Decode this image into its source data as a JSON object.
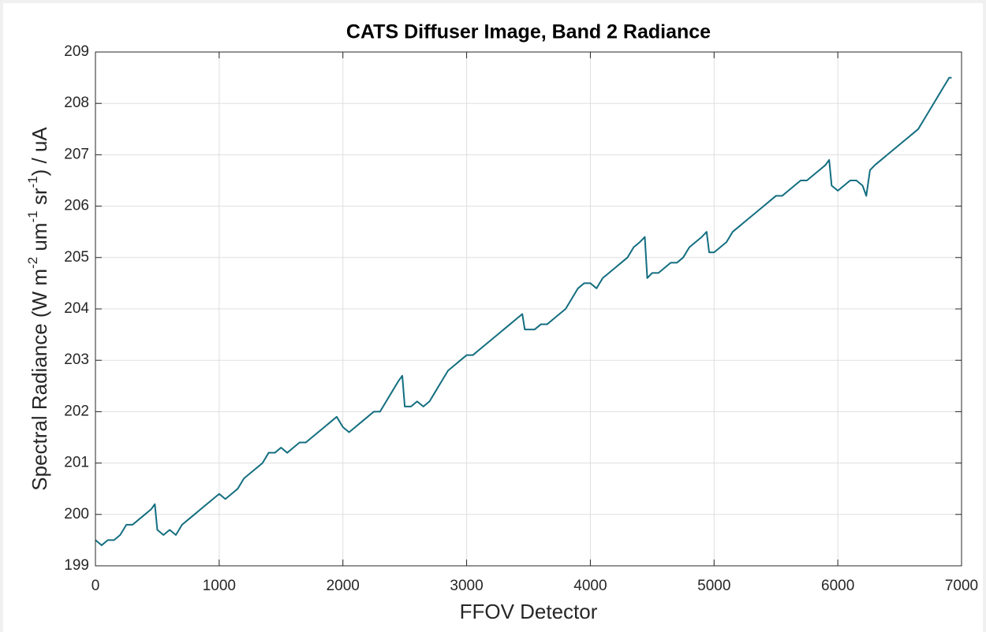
{
  "chart_data": {
    "type": "line",
    "title": "CATS Diffuser Image, Band 2 Radiance",
    "xlabel": "FFOV Detector",
    "ylabel": [
      "Spectral Radiance (W m",
      "-2",
      " um",
      "-1",
      " sr",
      "-1",
      ") / uA"
    ],
    "x": [
      0,
      50,
      100,
      150,
      200,
      250,
      300,
      350,
      400,
      450,
      480,
      500,
      550,
      600,
      650,
      700,
      750,
      800,
      850,
      900,
      950,
      1000,
      1050,
      1100,
      1150,
      1200,
      1250,
      1300,
      1350,
      1400,
      1450,
      1500,
      1550,
      1600,
      1650,
      1700,
      1750,
      1800,
      1850,
      1900,
      1950,
      2000,
      2050,
      2100,
      2150,
      2200,
      2250,
      2300,
      2350,
      2400,
      2450,
      2480,
      2500,
      2550,
      2600,
      2650,
      2700,
      2750,
      2800,
      2850,
      2900,
      2950,
      3000,
      3050,
      3100,
      3150,
      3200,
      3250,
      3300,
      3350,
      3400,
      3450,
      3470,
      3500,
      3550,
      3600,
      3650,
      3700,
      3750,
      3800,
      3850,
      3900,
      3950,
      4000,
      4050,
      4100,
      4150,
      4200,
      4250,
      4300,
      4350,
      4400,
      4440,
      4460,
      4500,
      4550,
      4600,
      4650,
      4700,
      4750,
      4800,
      4850,
      4900,
      4940,
      4960,
      5000,
      5050,
      5100,
      5150,
      5200,
      5250,
      5300,
      5350,
      5400,
      5450,
      5500,
      5550,
      5600,
      5650,
      5700,
      5750,
      5800,
      5850,
      5900,
      5930,
      5950,
      6000,
      6050,
      6100,
      6150,
      6200,
      6230,
      6260,
      6300,
      6350,
      6400,
      6450,
      6500,
      6550,
      6600,
      6650,
      6700,
      6750,
      6800,
      6850,
      6900,
      6920
    ],
    "series": [
      {
        "name": "Band 2",
        "color": "#136e80",
        "values": [
          199.5,
          199.4,
          199.5,
          199.5,
          199.6,
          199.8,
          199.8,
          199.9,
          200.0,
          200.1,
          200.2,
          199.7,
          199.6,
          199.7,
          199.6,
          199.8,
          199.9,
          200.0,
          200.1,
          200.2,
          200.3,
          200.4,
          200.3,
          200.4,
          200.5,
          200.7,
          200.8,
          200.9,
          201.0,
          201.2,
          201.2,
          201.3,
          201.2,
          201.3,
          201.4,
          201.4,
          201.5,
          201.6,
          201.7,
          201.8,
          201.9,
          201.7,
          201.6,
          201.7,
          201.8,
          201.9,
          202.0,
          202.0,
          202.2,
          202.4,
          202.6,
          202.7,
          202.1,
          202.1,
          202.2,
          202.1,
          202.2,
          202.4,
          202.6,
          202.8,
          202.9,
          203.0,
          203.1,
          203.1,
          203.2,
          203.3,
          203.4,
          203.5,
          203.6,
          203.7,
          203.8,
          203.9,
          203.6,
          203.6,
          203.6,
          203.7,
          203.7,
          203.8,
          203.9,
          204.0,
          204.2,
          204.4,
          204.5,
          204.5,
          204.4,
          204.6,
          204.7,
          204.8,
          204.9,
          205.0,
          205.2,
          205.3,
          205.4,
          204.6,
          204.7,
          204.7,
          204.8,
          204.9,
          204.9,
          205.0,
          205.2,
          205.3,
          205.4,
          205.5,
          205.1,
          205.1,
          205.2,
          205.3,
          205.5,
          205.6,
          205.7,
          205.8,
          205.9,
          206.0,
          206.1,
          206.2,
          206.2,
          206.3,
          206.4,
          206.5,
          206.5,
          206.6,
          206.7,
          206.8,
          206.9,
          206.4,
          206.3,
          206.4,
          206.5,
          206.5,
          206.4,
          206.2,
          206.7,
          206.8,
          206.9,
          207.0,
          207.1,
          207.2,
          207.3,
          207.4,
          207.5,
          207.7,
          207.9,
          208.1,
          208.3,
          208.5,
          208.5
        ]
      }
    ],
    "xlim": [
      0,
      7000
    ],
    "xticks": [
      0,
      1000,
      2000,
      3000,
      4000,
      5000,
      6000,
      7000
    ],
    "ylim": [
      199,
      209
    ],
    "yticks": [
      199,
      200,
      201,
      202,
      203,
      204,
      205,
      206,
      207,
      208,
      209
    ],
    "grid": true
  }
}
